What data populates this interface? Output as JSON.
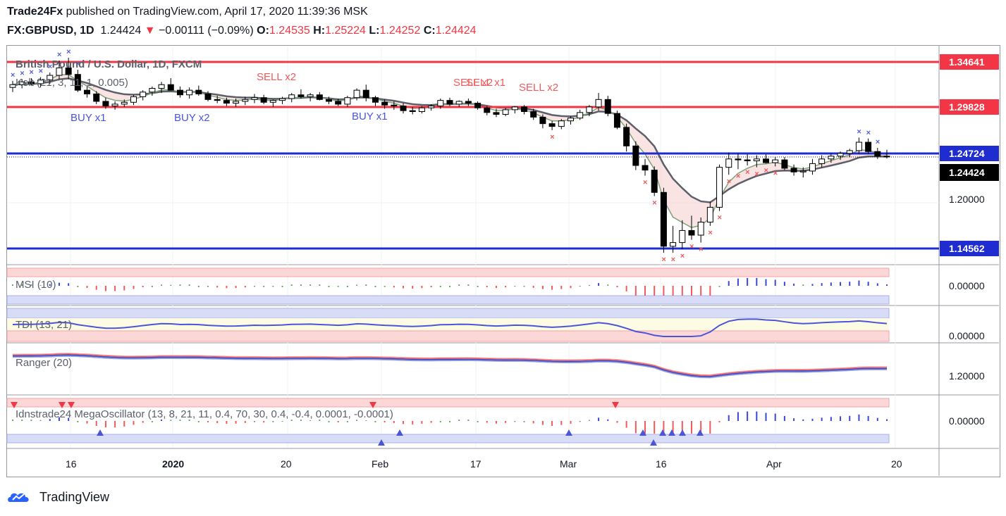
{
  "header": {
    "author": "Trade24Fx",
    "published_text": "published on TradingView.com, April 17, 2020 11:39:36 MSK",
    "symbol": "FX:GBPUSD, 1D",
    "last_price": "1.24424",
    "change_arrow": "▼",
    "change": "−0.00111 (−0.09%)",
    "o_label": "O:",
    "o_value": "1.24535",
    "h_label": "H:",
    "h_value": "1.25224",
    "l_label": "L:",
    "l_value": "1.24252",
    "c_label": "C:",
    "c_value": "1.24424"
  },
  "panes": {
    "main_title": "British Pound / U.S. Dollar, 1D, FXCM",
    "kelt_label": "Kelt (21, 3, 11, 1, 0.005)",
    "msi_label": "MSI (10)",
    "tdi_label": "TDI (13, 21)",
    "ranger_label": "Ranger (20)",
    "mega_label": "Idnstrade24 MegaOscillator (13, 8, 21, 11, 0.4, 70, 30, 0.4, -0.4, 0.0001, -0.0001)"
  },
  "price_scale": {
    "levels": [
      "1.34641",
      "1.29828",
      "1.24724",
      "1.24424",
      "1.20000",
      "1.14562"
    ],
    "msi_value": "0.00000",
    "tdi_value": "0.00000",
    "ranger_value": "1.20000",
    "mega_value": "0.00000"
  },
  "time_axis": [
    "16",
    "2020",
    "20",
    "Feb",
    "17",
    "Mar",
    "16",
    "Apr",
    "20"
  ],
  "signals": {
    "buy": [
      "BUY x1",
      "BUY x2",
      "BUY x1"
    ],
    "sell": [
      "SELL x2",
      "SELL x2",
      "SELL x1",
      "SELL x2"
    ]
  },
  "footer": {
    "brand": "TradingView"
  },
  "colors": {
    "resistance": "#f23645",
    "support": "#1f2ccf",
    "bull_candle": "#ffffff",
    "bear_candle": "#000000",
    "buy_text": "#4a55d8",
    "sell_text": "#f05a5a",
    "last_price_bg": "#000000"
  },
  "chart_data": {
    "type": "candlestick",
    "title": "British Pound / U.S. Dollar, 1D, FXCM",
    "horizontal_levels": [
      {
        "price": 1.34641,
        "color": "red"
      },
      {
        "price": 1.29828,
        "color": "red"
      },
      {
        "price": 1.24724,
        "color": "blue"
      },
      {
        "price": 1.14562,
        "color": "blue"
      }
    ],
    "last_close": 1.24424,
    "candles": [
      {
        "o": 1.319,
        "h": 1.326,
        "l": 1.314,
        "c": 1.322
      },
      {
        "o": 1.322,
        "h": 1.328,
        "l": 1.318,
        "c": 1.325
      },
      {
        "o": 1.325,
        "h": 1.329,
        "l": 1.321,
        "c": 1.323
      },
      {
        "o": 1.323,
        "h": 1.33,
        "l": 1.319,
        "c": 1.327
      },
      {
        "o": 1.327,
        "h": 1.335,
        "l": 1.323,
        "c": 1.332
      },
      {
        "o": 1.332,
        "h": 1.348,
        "l": 1.328,
        "c": 1.34
      },
      {
        "o": 1.34,
        "h": 1.351,
        "l": 1.328,
        "c": 1.333
      },
      {
        "o": 1.333,
        "h": 1.338,
        "l": 1.314,
        "c": 1.316
      },
      {
        "o": 1.316,
        "h": 1.32,
        "l": 1.308,
        "c": 1.312
      },
      {
        "o": 1.312,
        "h": 1.315,
        "l": 1.301,
        "c": 1.304
      },
      {
        "o": 1.304,
        "h": 1.308,
        "l": 1.296,
        "c": 1.299
      },
      {
        "o": 1.299,
        "h": 1.304,
        "l": 1.295,
        "c": 1.301
      },
      {
        "o": 1.301,
        "h": 1.306,
        "l": 1.298,
        "c": 1.303
      },
      {
        "o": 1.303,
        "h": 1.311,
        "l": 1.3,
        "c": 1.309
      },
      {
        "o": 1.309,
        "h": 1.316,
        "l": 1.305,
        "c": 1.314
      },
      {
        "o": 1.314,
        "h": 1.32,
        "l": 1.31,
        "c": 1.318
      },
      {
        "o": 1.318,
        "h": 1.325,
        "l": 1.313,
        "c": 1.322
      },
      {
        "o": 1.322,
        "h": 1.329,
        "l": 1.318,
        "c": 1.316
      },
      {
        "o": 1.316,
        "h": 1.32,
        "l": 1.308,
        "c": 1.311
      },
      {
        "o": 1.311,
        "h": 1.319,
        "l": 1.307,
        "c": 1.316
      },
      {
        "o": 1.316,
        "h": 1.321,
        "l": 1.31,
        "c": 1.312
      },
      {
        "o": 1.312,
        "h": 1.315,
        "l": 1.304,
        "c": 1.306
      },
      {
        "o": 1.306,
        "h": 1.31,
        "l": 1.302,
        "c": 1.305
      },
      {
        "o": 1.305,
        "h": 1.308,
        "l": 1.299,
        "c": 1.302
      },
      {
        "o": 1.302,
        "h": 1.307,
        "l": 1.298,
        "c": 1.304
      },
      {
        "o": 1.304,
        "h": 1.309,
        "l": 1.3,
        "c": 1.306
      },
      {
        "o": 1.306,
        "h": 1.312,
        "l": 1.302,
        "c": 1.308
      },
      {
        "o": 1.308,
        "h": 1.311,
        "l": 1.301,
        "c": 1.303
      },
      {
        "o": 1.303,
        "h": 1.306,
        "l": 1.298,
        "c": 1.305
      },
      {
        "o": 1.305,
        "h": 1.309,
        "l": 1.301,
        "c": 1.307
      },
      {
        "o": 1.307,
        "h": 1.313,
        "l": 1.303,
        "c": 1.311
      },
      {
        "o": 1.311,
        "h": 1.317,
        "l": 1.307,
        "c": 1.309
      },
      {
        "o": 1.309,
        "h": 1.313,
        "l": 1.304,
        "c": 1.311
      },
      {
        "o": 1.311,
        "h": 1.314,
        "l": 1.305,
        "c": 1.306
      },
      {
        "o": 1.306,
        "h": 1.309,
        "l": 1.301,
        "c": 1.304
      },
      {
        "o": 1.304,
        "h": 1.307,
        "l": 1.299,
        "c": 1.301
      },
      {
        "o": 1.301,
        "h": 1.31,
        "l": 1.298,
        "c": 1.308
      },
      {
        "o": 1.308,
        "h": 1.318,
        "l": 1.305,
        "c": 1.316
      },
      {
        "o": 1.316,
        "h": 1.322,
        "l": 1.304,
        "c": 1.308
      },
      {
        "o": 1.308,
        "h": 1.31,
        "l": 1.299,
        "c": 1.303
      },
      {
        "o": 1.303,
        "h": 1.306,
        "l": 1.296,
        "c": 1.3
      },
      {
        "o": 1.3,
        "h": 1.304,
        "l": 1.295,
        "c": 1.299
      },
      {
        "o": 1.299,
        "h": 1.302,
        "l": 1.291,
        "c": 1.294
      },
      {
        "o": 1.294,
        "h": 1.298,
        "l": 1.29,
        "c": 1.293
      },
      {
        "o": 1.293,
        "h": 1.299,
        "l": 1.291,
        "c": 1.297
      },
      {
        "o": 1.297,
        "h": 1.301,
        "l": 1.294,
        "c": 1.299
      },
      {
        "o": 1.299,
        "h": 1.307,
        "l": 1.296,
        "c": 1.305
      },
      {
        "o": 1.305,
        "h": 1.308,
        "l": 1.299,
        "c": 1.301
      },
      {
        "o": 1.301,
        "h": 1.305,
        "l": 1.298,
        "c": 1.304
      },
      {
        "o": 1.304,
        "h": 1.307,
        "l": 1.299,
        "c": 1.302
      },
      {
        "o": 1.302,
        "h": 1.304,
        "l": 1.295,
        "c": 1.297
      },
      {
        "o": 1.297,
        "h": 1.299,
        "l": 1.289,
        "c": 1.292
      },
      {
        "o": 1.292,
        "h": 1.296,
        "l": 1.287,
        "c": 1.29
      },
      {
        "o": 1.29,
        "h": 1.297,
        "l": 1.288,
        "c": 1.295
      },
      {
        "o": 1.295,
        "h": 1.299,
        "l": 1.291,
        "c": 1.298
      },
      {
        "o": 1.298,
        "h": 1.3,
        "l": 1.29,
        "c": 1.293
      },
      {
        "o": 1.293,
        "h": 1.296,
        "l": 1.284,
        "c": 1.287
      },
      {
        "o": 1.287,
        "h": 1.29,
        "l": 1.275,
        "c": 1.28
      },
      {
        "o": 1.28,
        "h": 1.283,
        "l": 1.273,
        "c": 1.277
      },
      {
        "o": 1.277,
        "h": 1.285,
        "l": 1.274,
        "c": 1.283
      },
      {
        "o": 1.283,
        "h": 1.288,
        "l": 1.279,
        "c": 1.286
      },
      {
        "o": 1.286,
        "h": 1.295,
        "l": 1.284,
        "c": 1.292
      },
      {
        "o": 1.292,
        "h": 1.3,
        "l": 1.288,
        "c": 1.298
      },
      {
        "o": 1.298,
        "h": 1.313,
        "l": 1.294,
        "c": 1.306
      },
      {
        "o": 1.306,
        "h": 1.31,
        "l": 1.288,
        "c": 1.291
      },
      {
        "o": 1.291,
        "h": 1.294,
        "l": 1.274,
        "c": 1.276
      },
      {
        "o": 1.276,
        "h": 1.28,
        "l": 1.25,
        "c": 1.256
      },
      {
        "o": 1.256,
        "h": 1.261,
        "l": 1.23,
        "c": 1.235
      },
      {
        "o": 1.235,
        "h": 1.242,
        "l": 1.224,
        "c": 1.23
      },
      {
        "o": 1.23,
        "h": 1.234,
        "l": 1.202,
        "c": 1.206
      },
      {
        "o": 1.206,
        "h": 1.211,
        "l": 1.141,
        "c": 1.148
      },
      {
        "o": 1.148,
        "h": 1.17,
        "l": 1.141,
        "c": 1.152
      },
      {
        "o": 1.152,
        "h": 1.176,
        "l": 1.145,
        "c": 1.165
      },
      {
        "o": 1.165,
        "h": 1.181,
        "l": 1.155,
        "c": 1.16
      },
      {
        "o": 1.16,
        "h": 1.179,
        "l": 1.152,
        "c": 1.174
      },
      {
        "o": 1.174,
        "h": 1.196,
        "l": 1.17,
        "c": 1.19
      },
      {
        "o": 1.19,
        "h": 1.236,
        "l": 1.186,
        "c": 1.233
      },
      {
        "o": 1.233,
        "h": 1.249,
        "l": 1.225,
        "c": 1.242
      },
      {
        "o": 1.242,
        "h": 1.248,
        "l": 1.231,
        "c": 1.241
      },
      {
        "o": 1.241,
        "h": 1.247,
        "l": 1.235,
        "c": 1.24
      },
      {
        "o": 1.24,
        "h": 1.246,
        "l": 1.233,
        "c": 1.242
      },
      {
        "o": 1.242,
        "h": 1.247,
        "l": 1.237,
        "c": 1.238
      },
      {
        "o": 1.238,
        "h": 1.244,
        "l": 1.234,
        "c": 1.241
      },
      {
        "o": 1.241,
        "h": 1.244,
        "l": 1.23,
        "c": 1.232
      },
      {
        "o": 1.232,
        "h": 1.236,
        "l": 1.224,
        "c": 1.228
      },
      {
        "o": 1.228,
        "h": 1.233,
        "l": 1.222,
        "c": 1.229
      },
      {
        "o": 1.229,
        "h": 1.242,
        "l": 1.225,
        "c": 1.237
      },
      {
        "o": 1.237,
        "h": 1.246,
        "l": 1.233,
        "c": 1.242
      },
      {
        "o": 1.242,
        "h": 1.248,
        "l": 1.238,
        "c": 1.245
      },
      {
        "o": 1.245,
        "h": 1.25,
        "l": 1.241,
        "c": 1.248
      },
      {
        "o": 1.248,
        "h": 1.253,
        "l": 1.244,
        "c": 1.251
      },
      {
        "o": 1.251,
        "h": 1.265,
        "l": 1.247,
        "c": 1.26
      },
      {
        "o": 1.26,
        "h": 1.264,
        "l": 1.247,
        "c": 1.25
      },
      {
        "o": 1.25,
        "h": 1.254,
        "l": 1.242,
        "c": 1.245
      },
      {
        "o": 1.245,
        "h": 1.252,
        "l": 1.2425,
        "c": 1.2442
      }
    ]
  }
}
